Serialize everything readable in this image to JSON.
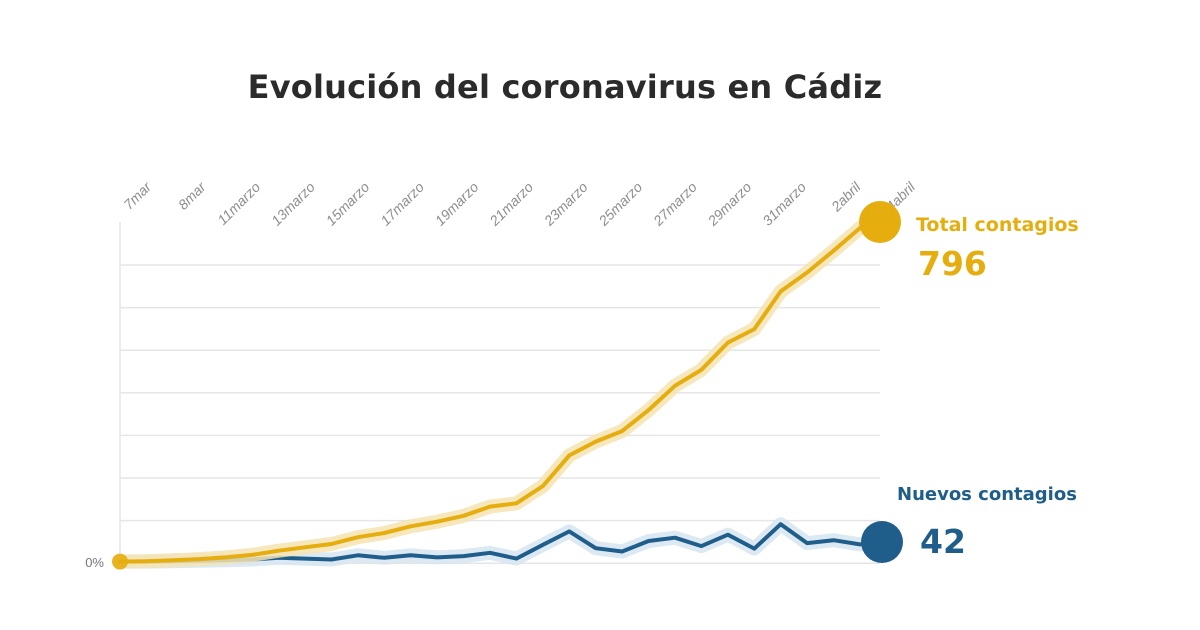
{
  "title": "Evolución del coronavirus en Cádiz",
  "colors": {
    "total": "#e6ad0f",
    "nuevos": "#1f5d8a",
    "grid": "#e6e6e6",
    "tick": "#8d8d8d"
  },
  "end_labels": {
    "total_label": "Total contagios",
    "total_value": "796",
    "nuevos_label": "Nuevos contagios",
    "nuevos_value": "42"
  },
  "chart_data": {
    "type": "line",
    "title": "Evolución del coronavirus en Cádiz",
    "xlabel": "",
    "ylabel": "",
    "x_tick_labels": [
      "7mar",
      "8mar",
      "11marzo",
      "13marzo",
      "15marzo",
      "17marzo",
      "19marzo",
      "21marzo",
      "23marzo",
      "25marzo",
      "27marzo",
      "29marzo",
      "31marzo",
      "2abril",
      "4abril"
    ],
    "y_tick_labels": [
      "0%"
    ],
    "x": [
      "7mar",
      "8mar",
      "9mar",
      "10mar",
      "11marzo",
      "12marzo",
      "13marzo",
      "14marzo",
      "15marzo",
      "16marzo",
      "17marzo",
      "18marzo",
      "19marzo",
      "20marzo",
      "21marzo",
      "22marzo",
      "23marzo",
      "24marzo",
      "25marzo",
      "26marzo",
      "27marzo",
      "28marzo",
      "29marzo",
      "30marzo",
      "31marzo",
      "1abril",
      "2abril",
      "3abril",
      "4abril"
    ],
    "ylim": [
      0,
      796
    ],
    "grid": true,
    "legend": "direct labels at right end of lines",
    "series": [
      {
        "name": "Total contagios",
        "color": "#e6ad0f",
        "values": [
          1,
          2,
          4,
          7,
          11,
          17,
          27,
          35,
          43,
          59,
          69,
          85,
          96,
          110,
          132,
          140,
          181,
          254,
          287,
          312,
          362,
          420,
          458,
          523,
          555,
          645,
          690,
          742,
          796
        ]
      },
      {
        "name": "Nuevos contagios",
        "color": "#1f5d8a",
        "values": [
          1,
          1,
          2,
          3,
          4,
          6,
          10,
          8,
          6,
          16,
          10,
          16,
          11,
          14,
          22,
          8,
          41,
          73,
          33,
          25,
          50,
          58,
          38,
          65,
          32,
          90,
          45,
          52,
          42
        ]
      }
    ]
  }
}
